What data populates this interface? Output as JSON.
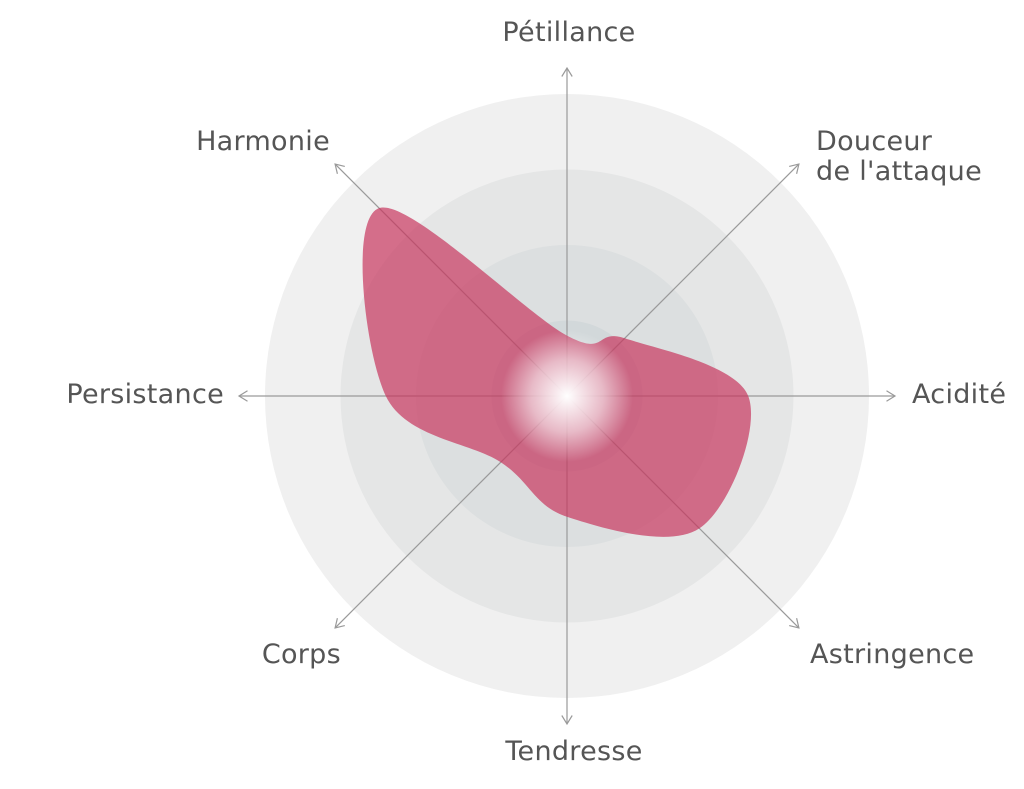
{
  "chart_data": {
    "type": "radar",
    "axes": [
      "Pétillance",
      "Douceur\nde l'attaque",
      "Acidité",
      "Astringence",
      "Tendresse",
      "Corps",
      "Persistance",
      "Harmonie"
    ],
    "series": [
      {
        "values": [
          0.2,
          0.27,
          0.6,
          0.62,
          0.4,
          0.31,
          0.6,
          0.88
        ]
      }
    ],
    "rings": 4,
    "range": [
      0,
      1
    ],
    "colors": {
      "fill": "#c7365e",
      "rings": [
        "#f0f0f0",
        "#e5e6e6",
        "#dcdfe0",
        "#d2d8da"
      ],
      "axis": "#9a9a9a",
      "label": "#555555"
    }
  }
}
